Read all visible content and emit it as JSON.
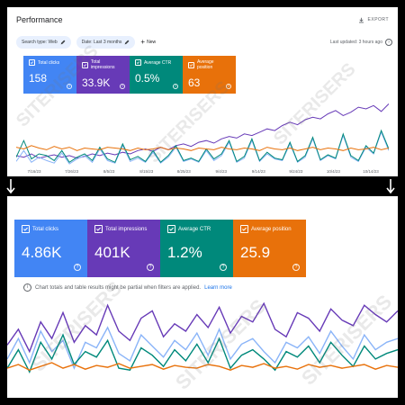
{
  "colors": {
    "clicks": "#4285f4",
    "impressions": "#673ab7",
    "ctr": "#00897b",
    "position": "#e8710a",
    "clicks_line": "#8ab4f8",
    "frame": "#000000"
  },
  "top_panel": {
    "title": "Performance",
    "export_label": "EXPORT",
    "export_icon": "download-icon",
    "filters": [
      {
        "label": "Search type: Web",
        "icon": "pencil-icon"
      },
      {
        "label": "Date: Last 3 months",
        "icon": "pencil-icon"
      }
    ],
    "new_label": "New",
    "last_updated": "Last updated: 3 hours ago",
    "cards": [
      {
        "label": "Total clicks",
        "value": "158"
      },
      {
        "label": "Total impressions",
        "value": "33.9K"
      },
      {
        "label": "Average CTR",
        "value": "0.5%"
      },
      {
        "label": "Average position",
        "value": "63"
      }
    ],
    "x_ticks": [
      "7/16/23",
      "7/26/23",
      "8/5/23",
      "8/15/23",
      "8/25/23",
      "9/4/23",
      "9/14/23",
      "9/24/23",
      "10/4/23",
      "10/14/23"
    ]
  },
  "bottom_panel": {
    "cards": [
      {
        "label": "Total clicks",
        "value": "4.86K"
      },
      {
        "label": "Total impressions",
        "value": "401K"
      },
      {
        "label": "Average CTR",
        "value": "1.2%"
      },
      {
        "label": "Average position",
        "value": "25.9"
      }
    ],
    "notice": "Chart totals and table results might be partial when filters are applied.",
    "learn_more": "Learn more"
  },
  "watermark": "SITERISERS",
  "chart_data": [
    {
      "type": "line",
      "series": [
        {
          "key": "impressions",
          "values": [
            12,
            10,
            14,
            9,
            11,
            13,
            10,
            12,
            9,
            11,
            14,
            12,
            15,
            13,
            16,
            14,
            18,
            20,
            17,
            22,
            19,
            24,
            26,
            23,
            28,
            30,
            27,
            32,
            35,
            33,
            38,
            36,
            40,
            44,
            42,
            48,
            52,
            49,
            55,
            58,
            56,
            62,
            66,
            60,
            64,
            70,
            68,
            72,
            65,
            74
          ]
        },
        {
          "key": "clicks",
          "values": [
            5,
            18,
            4,
            10,
            6,
            3,
            15,
            2,
            8,
            12,
            4,
            20,
            6,
            3,
            24,
            5,
            9,
            4,
            16,
            3,
            10,
            22,
            5,
            8,
            4,
            18,
            6,
            12,
            28,
            4,
            9,
            30,
            5,
            14,
            8,
            6,
            26,
            4,
            10,
            32,
            6,
            12,
            8,
            36,
            10,
            5,
            22,
            14,
            40,
            18
          ]
        },
        {
          "key": "ctr",
          "values": [
            10,
            30,
            8,
            14,
            12,
            6,
            18,
            4,
            10,
            14,
            6,
            22,
            8,
            4,
            26,
            7,
            11,
            5,
            18,
            4,
            12,
            24,
            6,
            9,
            5,
            20,
            8,
            14,
            30,
            5,
            11,
            32,
            6,
            16,
            9,
            7,
            28,
            5,
            12,
            34,
            7,
            13,
            9,
            38,
            12,
            6,
            24,
            15,
            42,
            20
          ]
        },
        {
          "key": "position",
          "values": [
            22,
            20,
            24,
            21,
            19,
            23,
            20,
            22,
            18,
            21,
            20,
            19,
            22,
            21,
            20,
            18,
            21,
            19,
            20,
            22,
            19,
            21,
            20,
            18,
            21,
            20,
            19,
            22,
            20,
            19,
            21,
            20,
            18,
            22,
            20,
            19,
            21,
            18,
            20,
            22,
            19,
            21,
            20,
            18,
            21,
            19,
            20,
            22,
            19,
            21
          ]
        }
      ]
    },
    {
      "type": "line",
      "series": [
        {
          "key": "impressions",
          "values": [
            55,
            72,
            48,
            80,
            62,
            90,
            58,
            76,
            66,
            98,
            70,
            60,
            84,
            92,
            64,
            78,
            70,
            88,
            74,
            96,
            68,
            86,
            80,
            100,
            72,
            64,
            90,
            84,
            70,
            94,
            82,
            76,
            98,
            88,
            80,
            92
          ]
        },
        {
          "key": "clicks",
          "values": [
            40,
            62,
            36,
            70,
            48,
            60,
            30,
            58,
            52,
            74,
            46,
            38,
            66,
            54,
            42,
            60,
            50,
            68,
            44,
            72,
            40,
            56,
            62,
            48,
            36,
            58,
            52,
            64,
            46,
            70,
            54,
            40,
            66,
            50,
            58,
            62
          ]
        },
        {
          "key": "ctr",
          "values": [
            30,
            50,
            26,
            58,
            40,
            66,
            34,
            48,
            42,
            60,
            30,
            28,
            52,
            44,
            32,
            50,
            38,
            56,
            36,
            62,
            30,
            44,
            50,
            40,
            28,
            48,
            42,
            54,
            36,
            58,
            44,
            32,
            54,
            40,
            46,
            50
          ]
        },
        {
          "key": "position",
          "values": [
            30,
            34,
            28,
            32,
            36,
            30,
            34,
            29,
            33,
            31,
            35,
            30,
            32,
            34,
            29,
            33,
            31,
            30,
            34,
            32,
            28,
            33,
            31,
            35,
            30,
            32,
            29,
            34,
            31,
            33,
            30,
            32,
            34,
            29,
            33,
            31
          ]
        }
      ]
    }
  ]
}
